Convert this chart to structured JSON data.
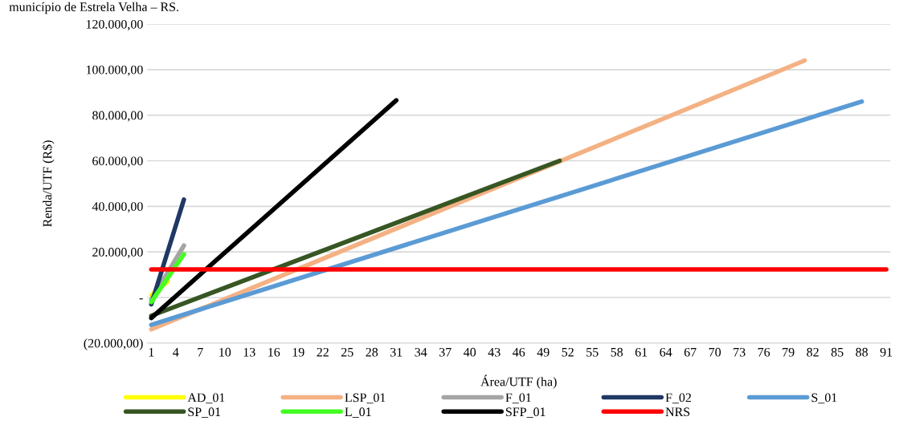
{
  "chart_data": {
    "type": "line",
    "annotations": [
      "município de Estrela Velha – RS."
    ],
    "xlabel": "Área/UTF (ha)",
    "ylabel": "Renda/UTF (R$)",
    "series": [
      {
        "name": "AD_01",
        "color": "#ffff00",
        "x": [
          1,
          3
        ],
        "values": [
          1000,
          7000
        ]
      },
      {
        "name": "LSP_01",
        "color": "#f4b183",
        "x": [
          1,
          81
        ],
        "values": [
          -14000,
          104000
        ]
      },
      {
        "name": "F_01",
        "color": "#a5a5a5",
        "x": [
          1,
          5
        ],
        "values": [
          -1000,
          22800
        ]
      },
      {
        "name": "F_02",
        "color": "#203864",
        "x": [
          1,
          5
        ],
        "values": [
          -3000,
          43000
        ]
      },
      {
        "name": "S_01",
        "color": "#5b9bd5",
        "x": [
          1,
          88
        ],
        "values": [
          -12000,
          86000
        ]
      },
      {
        "name": "SP_01",
        "color": "#375623",
        "x": [
          1,
          51
        ],
        "values": [
          -8000,
          60000
        ]
      },
      {
        "name": "L_01",
        "color": "#44ff22",
        "x": [
          1,
          5
        ],
        "values": [
          -2000,
          19000
        ]
      },
      {
        "name": "SFP_01",
        "color": "#000000",
        "x": [
          1,
          31
        ],
        "values": [
          -9000,
          86500
        ]
      },
      {
        "name": "NRS",
        "color": "#ff0000",
        "x": [
          1,
          91
        ],
        "values": [
          12300,
          12300
        ]
      }
    ],
    "xlim": [
      0.5,
      91.5
    ],
    "xticks": [
      1,
      4,
      7,
      10,
      13,
      16,
      19,
      22,
      25,
      28,
      31,
      34,
      37,
      40,
      43,
      46,
      49,
      52,
      55,
      58,
      61,
      64,
      67,
      70,
      73,
      76,
      79,
      82,
      85,
      88,
      91
    ],
    "ylim": [
      -20000,
      120000
    ],
    "yticks": [
      {
        "value": -20000,
        "label": "(20.000,00)"
      },
      {
        "value": 0,
        "label": "-"
      },
      {
        "value": 20000,
        "label": "20.000,00"
      },
      {
        "value": 40000,
        "label": "40.000,00"
      },
      {
        "value": 60000,
        "label": "60.000,00"
      },
      {
        "value": 80000,
        "label": "80.000,00"
      },
      {
        "value": 100000,
        "label": "100.000,00"
      },
      {
        "value": 120000,
        "label": "120.000,00"
      }
    ],
    "grid": "y",
    "legend": "bottom",
    "marker": "none",
    "line_style": "solid"
  }
}
